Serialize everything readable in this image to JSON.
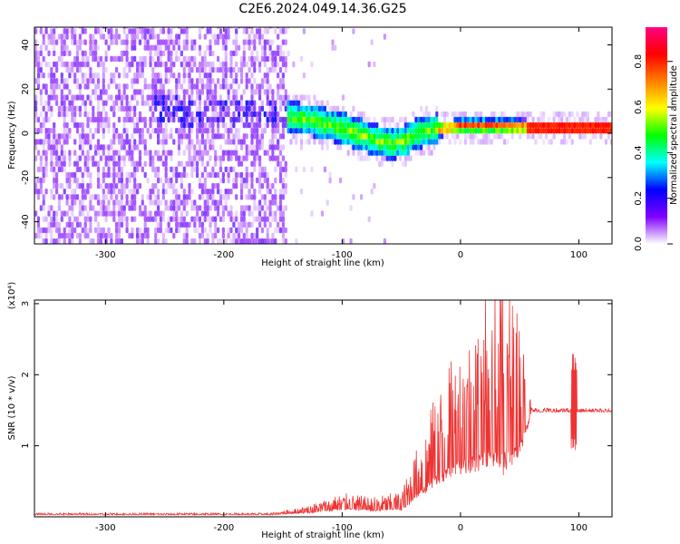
{
  "title": "C2E6.2024.049.14.36.G25",
  "chart_data": [
    {
      "type": "heatmap",
      "xlabel": "Height of straight line (km)",
      "ylabel": "Frequency (Hz)",
      "xlim": [
        -360,
        128
      ],
      "ylim": [
        -50,
        48
      ],
      "x_ticks": [
        -300,
        -200,
        -100,
        0,
        100
      ],
      "y_ticks": [
        -40,
        -20,
        0,
        20,
        40
      ],
      "colorbar": {
        "label": "Normalized spectral amplitude",
        "ticks": [
          "0.0",
          "0.2",
          "0.4",
          "0.6",
          "0.8"
        ],
        "tick_values": [
          0.0,
          0.2,
          0.4,
          0.6,
          0.8
        ],
        "range": [
          0,
          0.95
        ],
        "colormap": [
          "#ffffff",
          "#8000ff",
          "#0000ff",
          "#00ffff",
          "#00ff00",
          "#ffff00",
          "#ff8000",
          "#ff0000",
          "#ff0080"
        ]
      },
      "ridge": [
        {
          "x": -310,
          "y": 9
        },
        {
          "x": -290,
          "y": 8
        },
        {
          "x": -270,
          "y": 8
        },
        {
          "x": -250,
          "y": 10
        },
        {
          "x": -230,
          "y": 8
        },
        {
          "x": -210,
          "y": 9
        },
        {
          "x": -145,
          "y": 6
        },
        {
          "x": -130,
          "y": 5
        },
        {
          "x": -115,
          "y": 3
        },
        {
          "x": -100,
          "y": 1
        },
        {
          "x": -85,
          "y": -2
        },
        {
          "x": -75,
          "y": -4
        },
        {
          "x": -60,
          "y": -6
        },
        {
          "x": -50,
          "y": -5
        },
        {
          "x": -40,
          "y": -2
        },
        {
          "x": -30,
          "y": 0
        },
        {
          "x": -15,
          "y": 1
        },
        {
          "x": 0,
          "y": 2
        },
        {
          "x": 15,
          "y": 2
        },
        {
          "x": 35,
          "y": 2
        },
        {
          "x": 55,
          "y": 1.5
        },
        {
          "x": 80,
          "y": 1.2
        },
        {
          "x": 128,
          "y": 1.2
        }
      ]
    },
    {
      "type": "line",
      "xlabel": "Height of straight line (km)",
      "ylabel": "SNR (10 * v/v)",
      "multiplier": "(x10⁴)",
      "xlim": [
        -360,
        128
      ],
      "ylim": [
        0,
        3.05
      ],
      "x_ticks": [
        -300,
        -200,
        -100,
        0,
        100
      ],
      "y_ticks": [
        1,
        2,
        3
      ],
      "color": "#ee3333",
      "envelope": [
        {
          "x": -360,
          "base": 0.03,
          "amp": 0.02
        },
        {
          "x": -160,
          "base": 0.03,
          "amp": 0.02
        },
        {
          "x": -130,
          "base": 0.06,
          "amp": 0.08
        },
        {
          "x": -100,
          "base": 0.12,
          "amp": 0.18
        },
        {
          "x": -75,
          "base": 0.1,
          "amp": 0.15
        },
        {
          "x": -50,
          "base": 0.12,
          "amp": 0.2
        },
        {
          "x": -35,
          "base": 0.35,
          "amp": 0.6
        },
        {
          "x": -20,
          "base": 0.6,
          "amp": 1.0
        },
        {
          "x": 0,
          "base": 0.8,
          "amp": 1.4
        },
        {
          "x": 20,
          "base": 0.9,
          "amp": 1.8
        },
        {
          "x": 35,
          "base": 0.9,
          "amp": 2.2
        },
        {
          "x": 50,
          "base": 1.0,
          "amp": 1.6
        },
        {
          "x": 60,
          "base": 1.48,
          "amp": 0.05
        },
        {
          "x": 128,
          "base": 1.48,
          "amp": 0.03
        }
      ],
      "spike": {
        "x": 96,
        "max": 2.35,
        "min": 0.9
      }
    }
  ]
}
